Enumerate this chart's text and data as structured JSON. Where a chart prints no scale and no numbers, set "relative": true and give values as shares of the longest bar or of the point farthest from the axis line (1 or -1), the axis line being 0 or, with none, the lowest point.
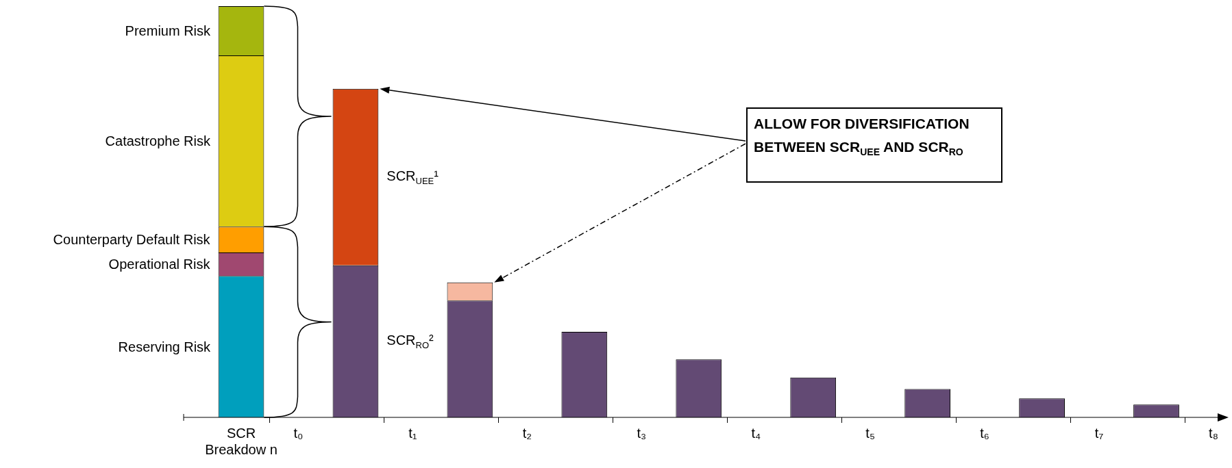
{
  "chart_data": {
    "type": "bar",
    "relative": true,
    "stacked": true,
    "categories": [
      "SCR Breakdow n",
      "t₀",
      null,
      "t₁",
      null,
      "t₂",
      null,
      "t₃",
      null,
      "t₄",
      null,
      "t₅",
      null,
      "t₆",
      null,
      "t₇",
      null,
      "t₈"
    ],
    "series": [
      {
        "name": "Reserving Risk",
        "color": "#009fbd",
        "values": [
          0.344,
          null,
          null,
          null,
          null,
          null,
          null,
          null,
          null,
          null,
          null,
          null,
          null,
          null,
          null,
          null,
          null,
          null
        ]
      },
      {
        "name": "Operational Risk",
        "color": "#a04870",
        "values": [
          0.057,
          null,
          null,
          null,
          null,
          null,
          null,
          null,
          null,
          null,
          null,
          null,
          null,
          null,
          null,
          null,
          null,
          null
        ]
      },
      {
        "name": "Counterparty Default Risk",
        "color": "#ff9e00",
        "values": [
          0.063,
          null,
          null,
          null,
          null,
          null,
          null,
          null,
          null,
          null,
          null,
          null,
          null,
          null,
          null,
          null,
          null,
          null
        ]
      },
      {
        "name": "Catastrophe Risk",
        "color": "#ddcc12",
        "values": [
          0.416,
          null,
          null,
          null,
          null,
          null,
          null,
          null,
          null,
          null,
          null,
          null,
          null,
          null,
          null,
          null,
          null,
          null
        ]
      },
      {
        "name": "Premium Risk",
        "color": "#a5b60e",
        "values": [
          0.12,
          null,
          null,
          null,
          null,
          null,
          null,
          null,
          null,
          null,
          null,
          null,
          null,
          null,
          null,
          null,
          null,
          null
        ]
      },
      {
        "name": "SCR$_{RO}$²",
        "color": "#634a74",
        "values": [
          null,
          null,
          0.37,
          null,
          0.284,
          null,
          0.208,
          null,
          0.141,
          null,
          0.097,
          null,
          0.069,
          null,
          0.046,
          null,
          0.031,
          null
        ]
      },
      {
        "name": "SCR$_{UEE}$¹",
        "color": "#d44512",
        "values": [
          null,
          null,
          0.429,
          null,
          null,
          null,
          null,
          null,
          null,
          null,
          null,
          null,
          null,
          null,
          null,
          null,
          null,
          null
        ]
      },
      {
        "color": "#f6b8a0",
        "values": [
          null,
          null,
          null,
          null,
          0.044,
          null,
          null,
          null,
          null,
          null,
          null,
          null,
          null,
          null,
          null,
          null,
          null,
          null
        ]
      }
    ],
    "annotations": [
      "ALLOW FOR DIVERSIFICATION BETWEEN SCR$_{UEE}$ AND SCR$_{RO}$"
    ]
  }
}
